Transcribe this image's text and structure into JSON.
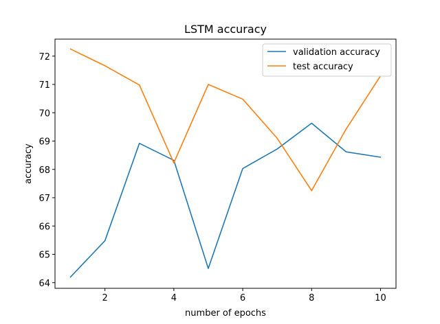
{
  "chart_data": {
    "type": "line",
    "title": "LSTM accuracy",
    "xlabel": "number of epochs",
    "ylabel": "accuracy",
    "x": [
      1,
      2,
      3,
      4,
      5,
      6,
      7,
      8,
      9,
      10
    ],
    "xlim": [
      0.55,
      10.45
    ],
    "ylim": [
      63.8,
      72.6
    ],
    "xticks": [
      2,
      4,
      6,
      8,
      10
    ],
    "yticks": [
      64,
      65,
      66,
      67,
      68,
      69,
      70,
      71,
      72
    ],
    "grid": false,
    "legend_position": "top-right",
    "series": [
      {
        "name": "validation accuracy",
        "color": "#1f77b4",
        "values": [
          64.2,
          65.48,
          68.92,
          68.32,
          64.5,
          68.03,
          68.72,
          69.63,
          68.62,
          68.43
        ]
      },
      {
        "name": "test accuracy",
        "color": "#ff7f0e",
        "values": [
          72.25,
          71.66,
          70.98,
          68.23,
          71.0,
          70.48,
          69.1,
          67.25,
          69.42,
          71.3
        ]
      }
    ]
  }
}
